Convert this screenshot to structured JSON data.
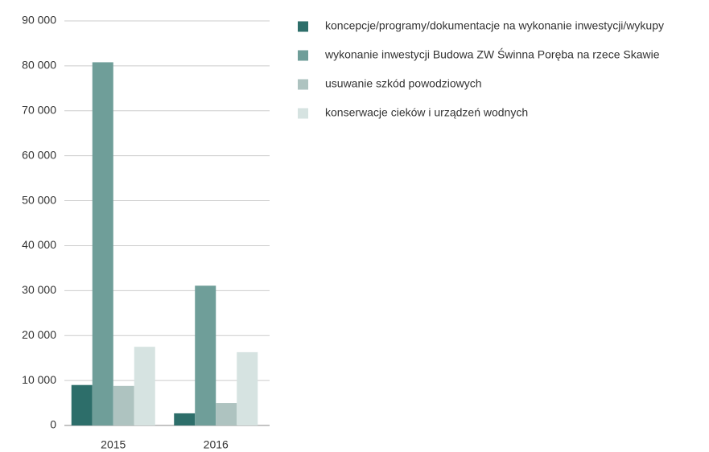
{
  "chart_data": {
    "type": "bar",
    "categories": [
      "2015",
      "2016"
    ],
    "series": [
      {
        "name": "koncepcje/programy/dokumentacje na wykonanie inwestycji/wykupy",
        "color": "#2d6e6a",
        "values": [
          9000,
          2700
        ]
      },
      {
        "name": "wykonanie inwestycji Budowa ZW Świnna Poręba na rzece Skawie",
        "color": "#6f9e99",
        "values": [
          80800,
          31100
        ]
      },
      {
        "name": "usuwanie szkód powodziowych",
        "color": "#aec3c0",
        "values": [
          8800,
          5000
        ]
      },
      {
        "name": "konserwacje cieków i urządzeń wodnych",
        "color": "#d6e3e1",
        "values": [
          17500,
          16300
        ]
      }
    ],
    "ylim": [
      0,
      90000
    ],
    "yticks": [
      0,
      {
        "value": 10000,
        "label": "10 000"
      },
      {
        "value": 20000,
        "label": "20 000"
      },
      {
        "value": 30000,
        "label": "30 000"
      },
      {
        "value": 40000,
        "label": "40 000"
      },
      {
        "value": 50000,
        "label": "50 000"
      },
      {
        "value": 60000,
        "label": "60 000"
      },
      {
        "value": 70000,
        "label": "70 000"
      },
      {
        "value": 80000,
        "label": "80 000"
      },
      {
        "value": 90000,
        "label": "90 000"
      }
    ],
    "grid": true,
    "legend": "right"
  }
}
